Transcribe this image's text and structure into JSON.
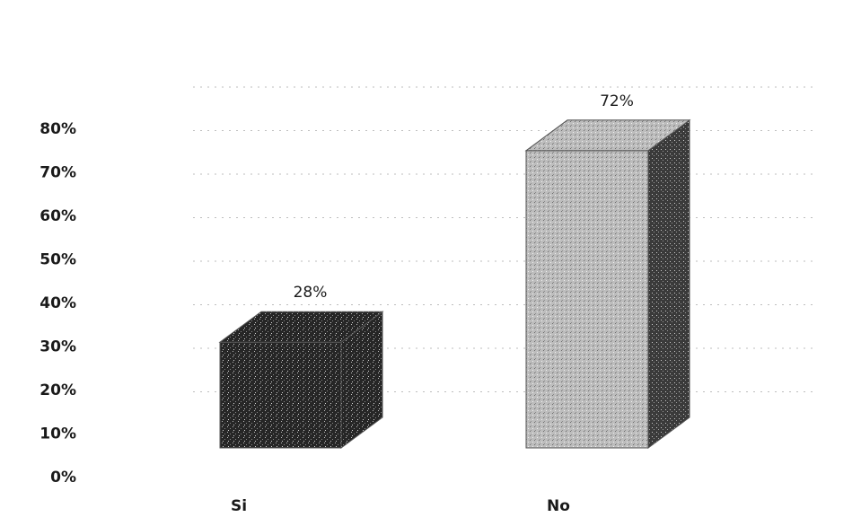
{
  "chart_data": {
    "type": "bar",
    "categories": [
      "Si",
      "No"
    ],
    "values": [
      28,
      72
    ],
    "data_labels": [
      "28%",
      "72%"
    ],
    "y_tick_labels": [
      "0%",
      "10%",
      "20%",
      "30%",
      "40%",
      "50%",
      "60%",
      "70%",
      "80%"
    ],
    "ylim": [
      0,
      80
    ],
    "grid": true,
    "three_d": true,
    "legend": "none",
    "colors": {
      "bar_si_front": "#2a2a2a",
      "bar_no_front": "#b8b8b8",
      "bar_no_side": "#3a3a3a",
      "gridline": "#bdbdbd"
    }
  }
}
